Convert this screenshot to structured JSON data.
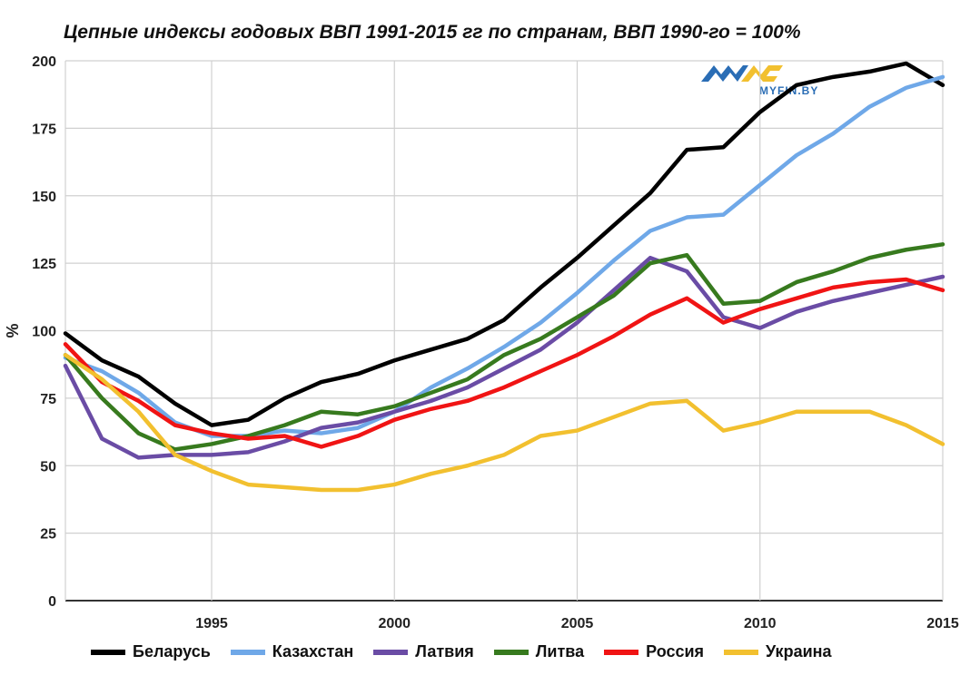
{
  "logo": {
    "text": "MYFIN.BY"
  },
  "chart_data": {
    "type": "line",
    "title": "Цепные индексы годовых ВВП 1991-2015 гг по странам, ВВП 1990-го = 100%",
    "xlabel": "",
    "ylabel": "%",
    "xlim": [
      1991,
      2015
    ],
    "ylim": [
      0,
      200
    ],
    "x": [
      1991,
      1992,
      1993,
      1994,
      1995,
      1996,
      1997,
      1998,
      1999,
      2000,
      2001,
      2002,
      2003,
      2004,
      2005,
      2006,
      2007,
      2008,
      2009,
      2010,
      2011,
      2012,
      2013,
      2014,
      2015
    ],
    "x_ticks": [
      "1995",
      "2000",
      "2005",
      "2010",
      "2015"
    ],
    "y_ticks": [
      "0",
      "25",
      "50",
      "75",
      "100",
      "125",
      "150",
      "175",
      "200"
    ],
    "grid": true,
    "legend_position": "bottom",
    "series": [
      {
        "name": "Беларусь",
        "color": "#000000",
        "values": [
          99,
          89,
          83,
          73,
          65,
          67,
          75,
          81,
          84,
          89,
          93,
          97,
          104,
          116,
          127,
          139,
          151,
          167,
          168,
          181,
          191,
          194,
          196,
          199,
          191
        ]
      },
      {
        "name": "Казахстан",
        "color": "#6fa8e8",
        "values": [
          90,
          85,
          77,
          66,
          61,
          61,
          63,
          62,
          64,
          70,
          79,
          86,
          94,
          103,
          114,
          126,
          137,
          142,
          143,
          154,
          165,
          173,
          183,
          190,
          194
        ]
      },
      {
        "name": "Латвия",
        "color": "#6a4ca5",
        "values": [
          87,
          60,
          53,
          54,
          54,
          55,
          59,
          64,
          66,
          70,
          74,
          79,
          86,
          93,
          103,
          115,
          127,
          122,
          105,
          101,
          107,
          111,
          114,
          117,
          120
        ]
      },
      {
        "name": "Литва",
        "color": "#377a1e",
        "values": [
          91,
          75,
          62,
          56,
          58,
          61,
          65,
          70,
          69,
          72,
          77,
          82,
          91,
          97,
          105,
          113,
          125,
          128,
          110,
          111,
          118,
          122,
          127,
          130,
          132
        ]
      },
      {
        "name": "Россия",
        "color": "#f01414",
        "values": [
          95,
          81,
          74,
          65,
          62,
          60,
          61,
          57,
          61,
          67,
          71,
          74,
          79,
          85,
          91,
          98,
          106,
          112,
          103,
          108,
          112,
          116,
          118,
          119,
          115
        ]
      },
      {
        "name": "Украина",
        "color": "#f2c02f",
        "values": [
          91,
          82,
          70,
          54,
          48,
          43,
          42,
          41,
          41,
          43,
          47,
          50,
          54,
          61,
          63,
          68,
          73,
          74,
          63,
          66,
          70,
          70,
          70,
          65,
          58
        ]
      }
    ]
  }
}
